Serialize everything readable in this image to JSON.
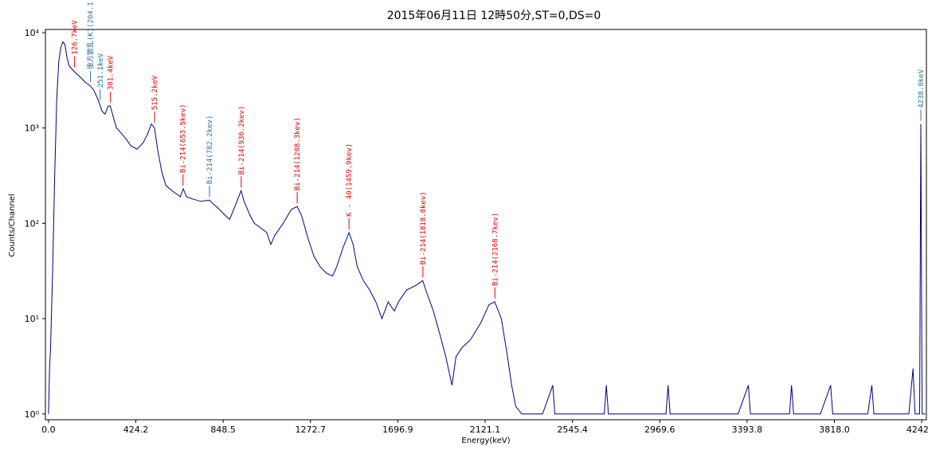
{
  "chart_data": {
    "type": "line",
    "title": "2015年06月11日 12時50分,ST=0,DS=0",
    "x_label": "Energy(keV)",
    "y_label": "Counts/Channel",
    "log_y": true,
    "xlim": [
      -15,
      4265
    ],
    "ylim": [
      0.87,
      10800
    ],
    "xticks": [
      {
        "value": 0,
        "label": "0.0"
      },
      {
        "value": 424.2,
        "label": "424.2"
      },
      {
        "value": 848.5,
        "label": "848.5"
      },
      {
        "value": 1272.7,
        "label": "1272.7"
      },
      {
        "value": 1696.9,
        "label": "1696.9"
      },
      {
        "value": 2121.1,
        "label": "2121.1"
      },
      {
        "value": 2545.4,
        "label": "2545.4"
      },
      {
        "value": 2969.6,
        "label": "2969.6"
      },
      {
        "value": 3393.8,
        "label": "3393.8"
      },
      {
        "value": 3818.0,
        "label": "3818.0"
      },
      {
        "value": 4242.3,
        "label": "4242.3"
      }
    ],
    "yticks": [
      {
        "value": 1,
        "label": "10⁰"
      },
      {
        "value": 10,
        "label": "10¹"
      },
      {
        "value": 100,
        "label": "10²"
      },
      {
        "value": 1000,
        "label": "10³"
      },
      {
        "value": 10000,
        "label": "10⁴"
      }
    ],
    "series": [
      {
        "color": "#000080",
        "x": [
          0,
          5,
          10,
          20,
          30,
          40,
          50,
          60,
          70,
          80,
          90,
          100,
          120,
          150,
          180,
          200,
          220,
          240,
          260,
          275,
          290,
          300,
          315,
          330,
          350,
          380,
          400,
          430,
          460,
          480,
          500,
          515,
          530,
          550,
          570,
          600,
          640,
          655,
          670,
          700,
          740,
          782,
          800,
          830,
          860,
          880,
          900,
          920,
          936,
          950,
          980,
          1000,
          1030,
          1060,
          1080,
          1100,
          1140,
          1180,
          1208,
          1230,
          1260,
          1290,
          1320,
          1350,
          1380,
          1400,
          1430,
          1460,
          1480,
          1500,
          1530,
          1560,
          1590,
          1620,
          1650,
          1680,
          1700,
          1740,
          1780,
          1818,
          1840,
          1870,
          1900,
          1930,
          1960,
          1980,
          2010,
          2050,
          2100,
          2140,
          2168,
          2200,
          2230,
          2250,
          2270,
          2300,
          2400,
          2450,
          2460,
          2600,
          2700,
          2710,
          2720,
          2950,
          3000,
          3010,
          3020,
          3350,
          3400,
          3410,
          3600,
          3610,
          3620,
          3750,
          3800,
          3810,
          3980,
          4000,
          4010,
          4180,
          4200,
          4210,
          4232,
          4238,
          4244,
          4260
        ],
        "values": [
          1,
          3,
          5,
          30,
          300,
          2000,
          5000,
          7000,
          8000,
          7500,
          5500,
          4500,
          4000,
          3500,
          3000,
          2800,
          2500,
          2000,
          1500,
          1400,
          1700,
          1700,
          1300,
          1000,
          900,
          750,
          650,
          600,
          700,
          850,
          1100,
          1000,
          600,
          350,
          250,
          220,
          190,
          230,
          190,
          180,
          170,
          175,
          160,
          140,
          120,
          110,
          140,
          180,
          220,
          170,
          120,
          100,
          90,
          80,
          60,
          75,
          100,
          140,
          150,
          120,
          70,
          45,
          35,
          30,
          28,
          35,
          55,
          80,
          60,
          35,
          25,
          20,
          15,
          10,
          15,
          12,
          15,
          20,
          22,
          25,
          18,
          12,
          7,
          4,
          2,
          4,
          5,
          6,
          9,
          14,
          15,
          10,
          4,
          2,
          1.2,
          1,
          1,
          2,
          1,
          1,
          1,
          2,
          1,
          1,
          1,
          2,
          1,
          1,
          2,
          1,
          1,
          2,
          1,
          1,
          2,
          1,
          1,
          2,
          1,
          1,
          3,
          1,
          1,
          1100,
          1,
          1
        ]
      }
    ],
    "annotations": [
      {
        "text": "126.7keV",
        "x": 126.7,
        "y": 4000,
        "color": "#e00000"
      },
      {
        "text": "後方散乱(K)(204.1",
        "x": 204.1,
        "y": 2800,
        "color": "#3070a0"
      },
      {
        "text": "251.1keV",
        "x": 251.1,
        "y": 1800,
        "color": "#3070a0"
      },
      {
        "text": "301.4keV",
        "x": 301.4,
        "y": 1700,
        "color": "#e00000"
      },
      {
        "text": "515.2keV",
        "x": 515.2,
        "y": 1050,
        "color": "#e00000"
      },
      {
        "text": "Bi-214(653.5kev)",
        "x": 653.5,
        "y": 230,
        "color": "#e00000"
      },
      {
        "text": "Bi-214(782.2kev)",
        "x": 782.2,
        "y": 175,
        "color": "#3070a0"
      },
      {
        "text": "Bi-214(936.2kev)",
        "x": 936.2,
        "y": 220,
        "color": "#e00000"
      },
      {
        "text": "Bi-214(1208.3kev)",
        "x": 1208.3,
        "y": 150,
        "color": "#e00000"
      },
      {
        "text": "K - 40(1459.9kev)",
        "x": 1459.9,
        "y": 80,
        "color": "#e00000"
      },
      {
        "text": "Bi-214(1818.8kev)",
        "x": 1818.8,
        "y": 25,
        "color": "#e00000"
      },
      {
        "text": "Bi-214(2168.7kev)",
        "x": 2168.7,
        "y": 15,
        "color": "#e00000"
      },
      {
        "text": "4238.0keV",
        "x": 4238.0,
        "y": 1100,
        "color": "#3070a0"
      }
    ]
  }
}
